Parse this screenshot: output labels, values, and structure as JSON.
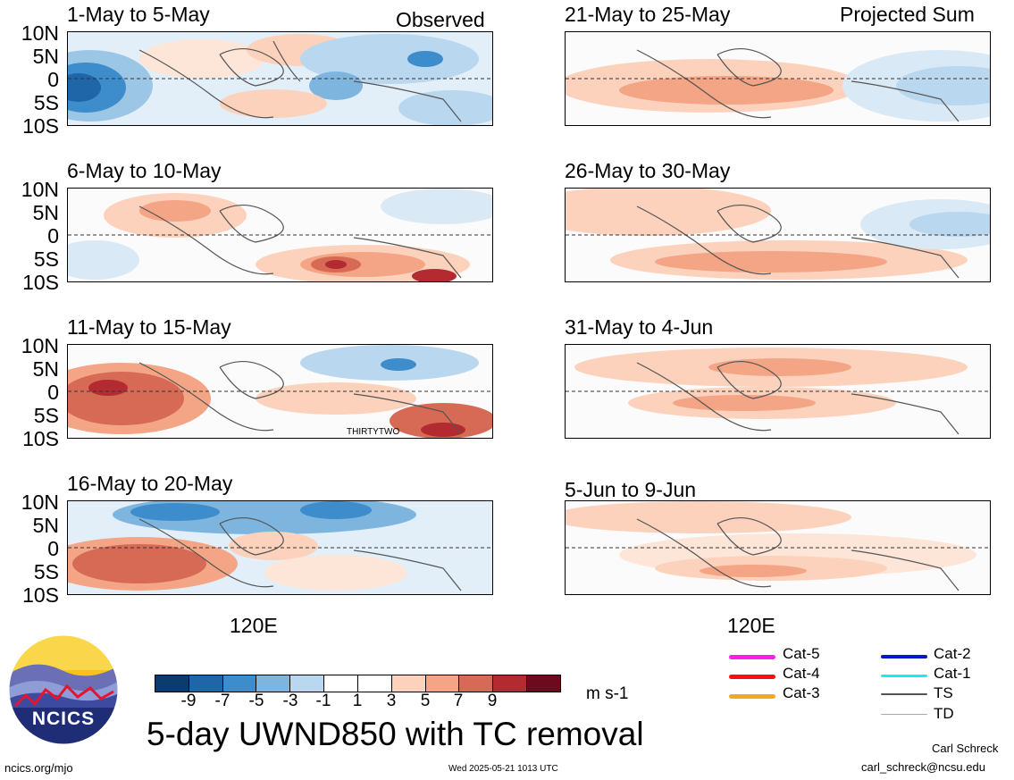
{
  "panels": [
    {
      "id": "p1",
      "title": "1-May to 5-May",
      "corner": "Observed",
      "label": ""
    },
    {
      "id": "p2",
      "title": "21-May to 25-May",
      "corner": "Projected Sum",
      "label": ""
    },
    {
      "id": "p3",
      "title": "6-May to 10-May",
      "corner": "",
      "label": ""
    },
    {
      "id": "p4",
      "title": "26-May to 30-May",
      "corner": "",
      "label": ""
    },
    {
      "id": "p5",
      "title": "11-May to 15-May",
      "corner": "",
      "label": "THIRTYTWO"
    },
    {
      "id": "p6",
      "title": "31-May to 4-Jun",
      "corner": "",
      "label": ""
    },
    {
      "id": "p7",
      "title": "16-May to 20-May",
      "corner": "",
      "label": ""
    },
    {
      "id": "p8",
      "title": "5-Jun to 9-Jun",
      "corner": "",
      "label": ""
    }
  ],
  "lat_labels": [
    "10N",
    "5N",
    "0",
    "5S",
    "10S"
  ],
  "x_label": "120E",
  "colorbar": {
    "colors": [
      "#0a3d6e",
      "#1f66a8",
      "#3d8ccc",
      "#7db5de",
      "#b9d7ee",
      "#ffffff",
      "#ffffff",
      "#fcd2bc",
      "#f3a585",
      "#d66a55",
      "#b32a30",
      "#6c0a1e"
    ],
    "tick_labels": [
      "-9",
      "-7",
      "-5",
      "-3",
      "-1",
      "1",
      "3",
      "5",
      "7",
      "9"
    ],
    "unit": "m s-1"
  },
  "title": "5-day UWND850 with TC removal",
  "logo_text": "NCICS",
  "legend": [
    {
      "label": "Cat-5",
      "color": "#ff1cf0"
    },
    {
      "label": "Cat-4",
      "color": "#ff0d0d"
    },
    {
      "label": "Cat-3",
      "color": "#f5a623"
    },
    {
      "label": "Cat-2",
      "color": "#0019c8"
    },
    {
      "label": "Cat-1",
      "color": "#14f0f0"
    },
    {
      "label": "TS",
      "color": "#555555"
    },
    {
      "label": "TD",
      "color": "#aaaaaa"
    }
  ],
  "footer": {
    "website": "ncics.org/mjo",
    "timestamp": "Wed 2025-05-21 1013 UTC",
    "author": "Carl Schreck",
    "email": "carl_schreck@ncsu.edu"
  }
}
